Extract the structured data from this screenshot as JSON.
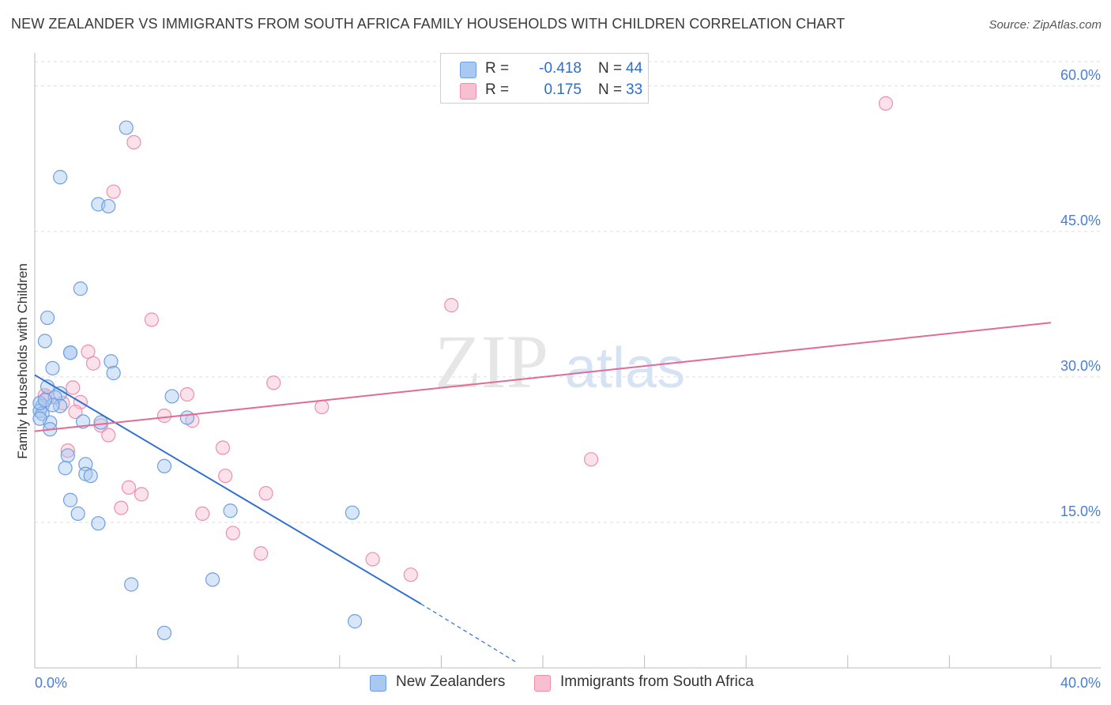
{
  "title": "NEW ZEALANDER VS IMMIGRANTS FROM SOUTH AFRICA FAMILY HOUSEHOLDS WITH CHILDREN CORRELATION CHART",
  "source": "Source: ZipAtlas.com",
  "watermark": {
    "zip": "ZIP",
    "atlas": "atlas"
  },
  "legend": {
    "series1": {
      "r_label": "R =",
      "r_value": "-0.418",
      "n_label": "N =",
      "n_value": "44"
    },
    "series2": {
      "r_label": "R =",
      "r_value": "0.175",
      "n_label": "N =",
      "n_value": "33"
    }
  },
  "colors": {
    "blue_fill": "#a9c8f2",
    "blue_stroke": "#6f9fe0",
    "blue_line": "#2e6fd1",
    "pink_fill": "#f7bfd0",
    "pink_stroke": "#ec8fae",
    "pink_line": "#e36a96",
    "grid": "#dcdcdc",
    "tick_text": "#4a7fd0"
  },
  "chart_data": {
    "type": "scatter",
    "title": "NEW ZEALANDER VS IMMIGRANTS FROM SOUTH AFRICA FAMILY HOUSEHOLDS WITH CHILDREN CORRELATION CHART",
    "xlabel": "",
    "ylabel": "Family Households with Children",
    "xlim": [
      0,
      40
    ],
    "ylim": [
      0,
      63
    ],
    "x_tick_labels": [
      "0.0%",
      "40.0%"
    ],
    "y_ticks": [
      15,
      30,
      45,
      60
    ],
    "y_tick_labels": [
      "15.0%",
      "30.0%",
      "45.0%",
      "60.0%"
    ],
    "series": [
      {
        "name": "New Zealanders",
        "color": "blue",
        "points": [
          [
            3.6,
            55.7
          ],
          [
            1.0,
            50.6
          ],
          [
            2.5,
            47.8
          ],
          [
            2.9,
            47.6
          ],
          [
            1.8,
            39.1
          ],
          [
            0.5,
            36.1
          ],
          [
            0.4,
            33.7
          ],
          [
            1.4,
            32.5
          ],
          [
            1.4,
            32.5
          ],
          [
            3.0,
            31.6
          ],
          [
            3.1,
            30.4
          ],
          [
            0.7,
            30.9
          ],
          [
            0.5,
            29.0
          ],
          [
            1.0,
            28.3
          ],
          [
            0.8,
            27.9
          ],
          [
            0.3,
            27.0
          ],
          [
            1.0,
            27.0
          ],
          [
            0.7,
            27.1
          ],
          [
            0.2,
            26.5
          ],
          [
            0.3,
            26.2
          ],
          [
            5.4,
            28.0
          ],
          [
            6.0,
            25.8
          ],
          [
            0.6,
            25.3
          ],
          [
            1.9,
            25.4
          ],
          [
            2.6,
            25.3
          ],
          [
            0.6,
            24.6
          ],
          [
            1.3,
            21.9
          ],
          [
            2.0,
            21.0
          ],
          [
            1.2,
            20.6
          ],
          [
            5.1,
            20.8
          ],
          [
            2.0,
            20.0
          ],
          [
            2.2,
            19.8
          ],
          [
            1.4,
            17.3
          ],
          [
            1.7,
            15.9
          ],
          [
            7.7,
            16.2
          ],
          [
            2.5,
            14.9
          ],
          [
            12.5,
            16.0
          ],
          [
            3.8,
            8.6
          ],
          [
            7.0,
            9.1
          ],
          [
            12.6,
            4.8
          ],
          [
            5.1,
            3.6
          ],
          [
            0.2,
            27.3
          ],
          [
            0.4,
            27.6
          ],
          [
            0.2,
            25.7
          ]
        ]
      },
      {
        "name": "Immigrants from South Africa",
        "color": "pink",
        "points": [
          [
            33.5,
            58.2
          ],
          [
            3.9,
            54.2
          ],
          [
            3.1,
            49.1
          ],
          [
            16.4,
            37.4
          ],
          [
            4.6,
            35.9
          ],
          [
            2.1,
            32.6
          ],
          [
            2.3,
            31.4
          ],
          [
            9.4,
            29.4
          ],
          [
            1.5,
            28.9
          ],
          [
            6.0,
            28.2
          ],
          [
            0.4,
            28.1
          ],
          [
            1.8,
            27.4
          ],
          [
            11.3,
            26.9
          ],
          [
            1.6,
            26.4
          ],
          [
            5.1,
            26.0
          ],
          [
            6.2,
            25.5
          ],
          [
            2.6,
            25.0
          ],
          [
            2.9,
            24.0
          ],
          [
            1.3,
            22.4
          ],
          [
            7.4,
            22.7
          ],
          [
            21.9,
            21.5
          ],
          [
            7.5,
            19.8
          ],
          [
            3.7,
            18.6
          ],
          [
            4.2,
            17.9
          ],
          [
            9.1,
            18.0
          ],
          [
            3.4,
            16.5
          ],
          [
            6.6,
            15.9
          ],
          [
            7.8,
            13.9
          ],
          [
            8.9,
            11.8
          ],
          [
            13.3,
            11.2
          ],
          [
            14.8,
            9.6
          ],
          [
            0.5,
            27.9
          ],
          [
            1.1,
            27.3
          ]
        ]
      }
    ],
    "trendlines": [
      {
        "series": "New Zealanders",
        "solid": [
          [
            0.0,
            30.2
          ],
          [
            15.2,
            6.6
          ]
        ],
        "dashed": [
          [
            15.2,
            6.6
          ],
          [
            19.0,
            0.5
          ]
        ]
      },
      {
        "series": "Immigrants from South Africa",
        "solid": [
          [
            0.0,
            24.4
          ],
          [
            40.0,
            35.6
          ]
        ]
      }
    ]
  },
  "bottom_legend": {
    "item1": "New Zealanders",
    "item2": "Immigrants from South Africa"
  }
}
